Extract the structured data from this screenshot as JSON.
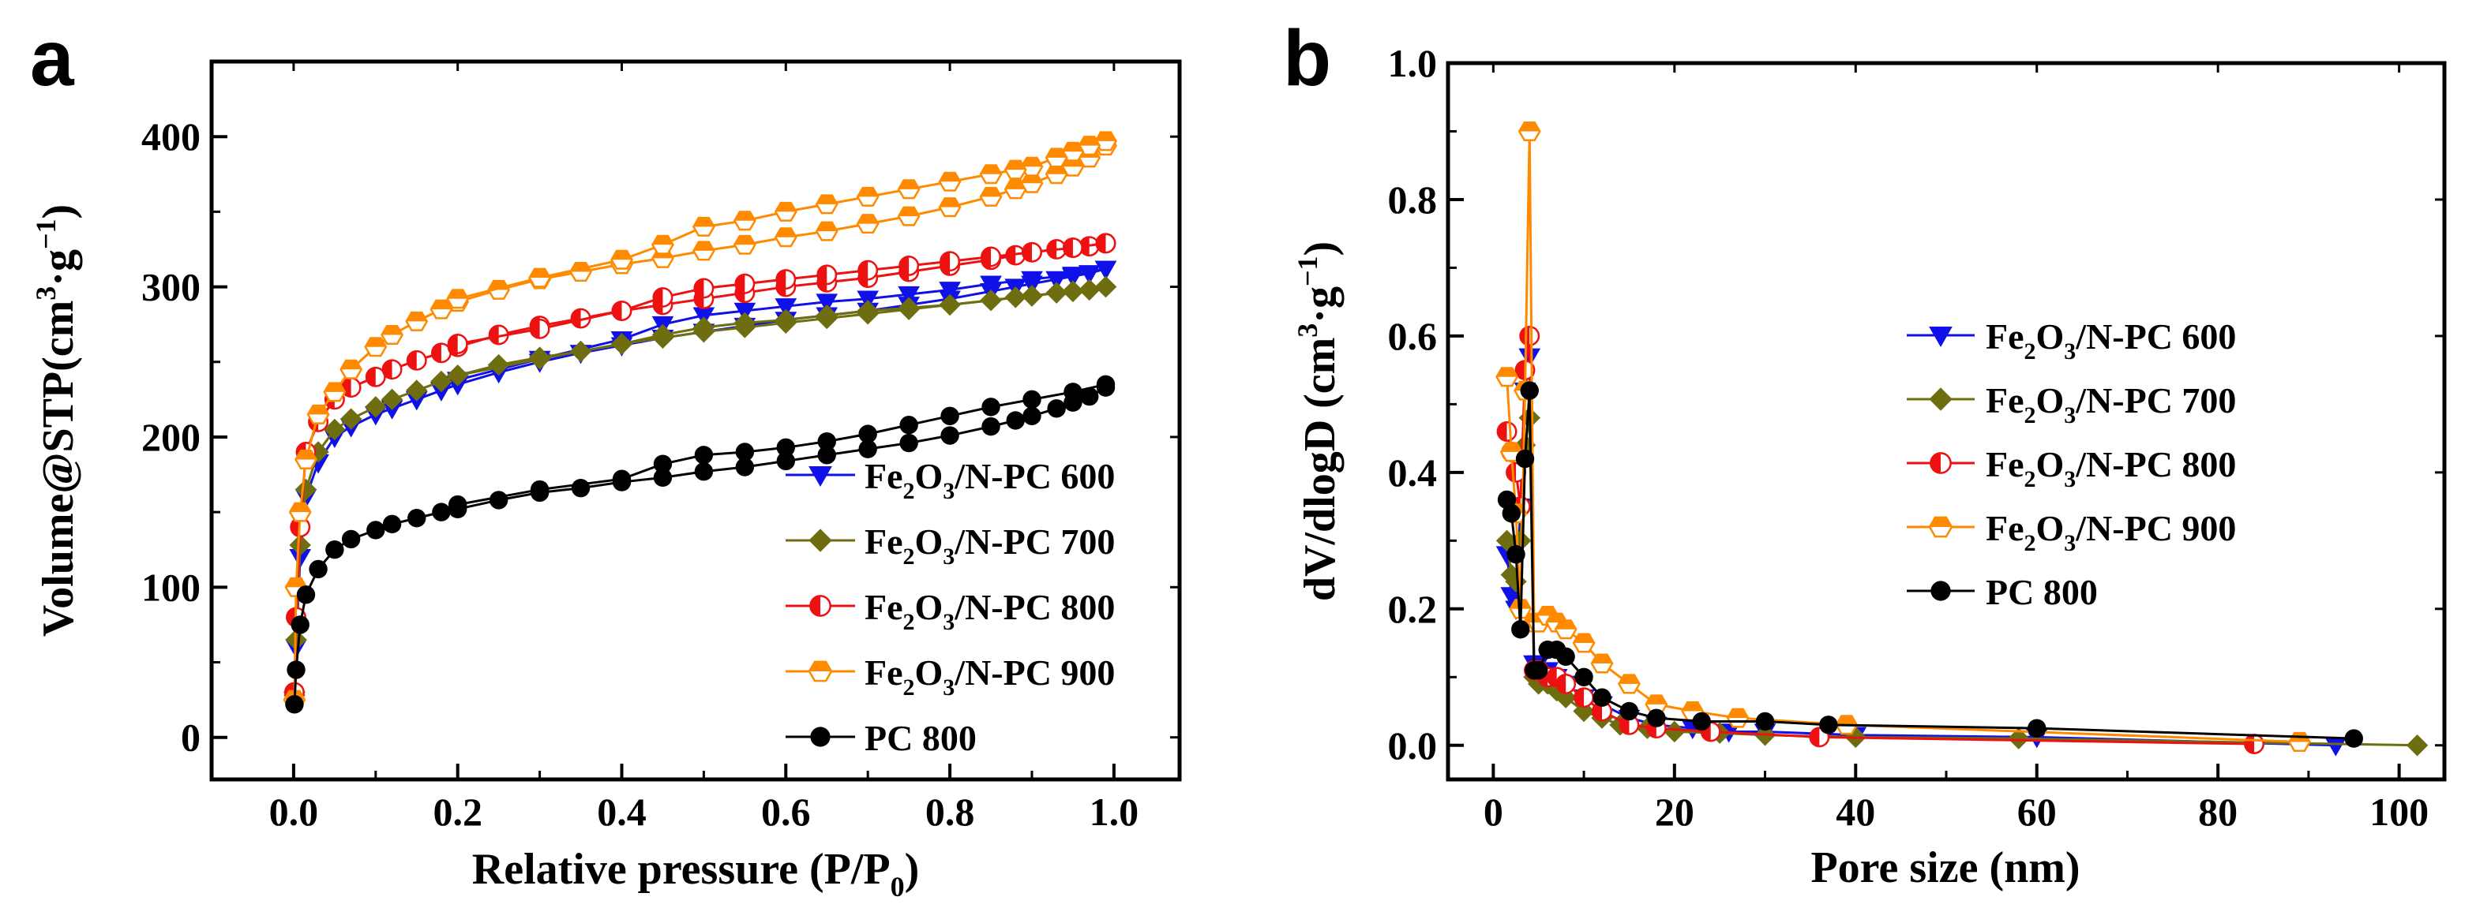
{
  "chart_data": [
    {
      "type": "scatter",
      "panel_label": "a",
      "title": "",
      "xlabel_main": "Relative pressure (P/P",
      "xlabel_sub": "0",
      "xlabel_tail": ")",
      "ylabel_main": "Volume@STP(cm",
      "ylabel_sup1": "3",
      "ylabel_dot": "·g",
      "ylabel_sup2": "−1",
      "ylabel_tail": ")",
      "xlim": [
        -0.1,
        1.08
      ],
      "ylim": [
        -28,
        450
      ],
      "xticks": [
        0.0,
        0.2,
        0.4,
        0.6,
        0.8,
        1.0
      ],
      "xtick_labels": [
        "0.0",
        "0.2",
        "0.4",
        "0.6",
        "0.8",
        "1.0"
      ],
      "yticks": [
        0,
        100,
        200,
        300,
        400
      ],
      "ytick_labels": [
        "0",
        "100",
        "200",
        "300",
        "400"
      ],
      "legend_position": "bottom-right",
      "series": [
        {
          "name": "Fe2O3/N-PC 600",
          "label_parts": [
            "Fe",
            "2",
            "O",
            "3",
            "/N-PC 600"
          ],
          "color": "#1010e8",
          "marker": "triangle-down",
          "adsorption": {
            "x": [
              0.001,
              0.003,
              0.008,
              0.015,
              0.03,
              0.05,
              0.07,
              0.1,
              0.12,
              0.15,
              0.18,
              0.2,
              0.25,
              0.3,
              0.35,
              0.4,
              0.45,
              0.5,
              0.55,
              0.6,
              0.65,
              0.7,
              0.75,
              0.8,
              0.85,
              0.88,
              0.9,
              0.93,
              0.95,
              0.97,
              0.99
            ],
            "y": [
              25,
              60,
              120,
              160,
              183,
              200,
              207,
              215,
              219,
              225,
              231,
              235,
              243,
              250,
              256,
              261,
              266,
              270,
              274,
              278,
              281,
              284,
              288,
              292,
              297,
              300,
              302,
              305,
              307,
              309,
              312
            ]
          },
          "desorption": {
            "x": [
              0.99,
              0.95,
              0.9,
              0.85,
              0.8,
              0.75,
              0.7,
              0.65,
              0.6,
              0.55,
              0.5,
              0.45,
              0.4,
              0.3,
              0.2
            ],
            "y": [
              312,
              308,
              305,
              302,
              298,
              295,
              292,
              290,
              287,
              284,
              281,
              275,
              265,
              252,
              238
            ]
          }
        },
        {
          "name": "Fe2O3/N-PC 700",
          "label_parts": [
            "Fe",
            "2",
            "O",
            "3",
            "/N-PC 700"
          ],
          "color": "#6e6e10",
          "marker": "diamond",
          "adsorption": {
            "x": [
              0.001,
              0.003,
              0.008,
              0.015,
              0.03,
              0.05,
              0.07,
              0.1,
              0.12,
              0.15,
              0.18,
              0.2,
              0.25,
              0.3,
              0.35,
              0.4,
              0.45,
              0.5,
              0.55,
              0.6,
              0.65,
              0.7,
              0.75,
              0.8,
              0.85,
              0.88,
              0.9,
              0.93,
              0.95,
              0.97,
              0.99
            ],
            "y": [
              28,
              65,
              128,
              165,
              190,
              205,
              212,
              220,
              225,
              231,
              237,
              241,
              248,
              253,
              257,
              262,
              266,
              270,
              273,
              276,
              279,
              282,
              285,
              288,
              291,
              293,
              294,
              296,
              297,
              298,
              300
            ]
          },
          "desorption": {
            "x": [
              0.99,
              0.95,
              0.9,
              0.85,
              0.8,
              0.75,
              0.7,
              0.65,
              0.6,
              0.55,
              0.5,
              0.45,
              0.4,
              0.3,
              0.2
            ],
            "y": [
              300,
              297,
              294,
              291,
              288,
              286,
              284,
              281,
              278,
              276,
              273,
              268,
              262,
              252,
              241
            ]
          }
        },
        {
          "name": "Fe2O3/N-PC 800",
          "label_parts": [
            "Fe",
            "2",
            "O",
            "3",
            "/N-PC 800"
          ],
          "color": "#ee1111",
          "marker": "circle-half",
          "adsorption": {
            "x": [
              0.001,
              0.003,
              0.008,
              0.015,
              0.03,
              0.05,
              0.07,
              0.1,
              0.12,
              0.15,
              0.18,
              0.2,
              0.25,
              0.3,
              0.35,
              0.4,
              0.45,
              0.5,
              0.55,
              0.6,
              0.65,
              0.7,
              0.75,
              0.8,
              0.85,
              0.88,
              0.9,
              0.93,
              0.95,
              0.97,
              0.99
            ],
            "y": [
              30,
              80,
              140,
              190,
              210,
              225,
              233,
              240,
              245,
              251,
              256,
              260,
              268,
              274,
              279,
              284,
              288,
              292,
              296,
              300,
              303,
              306,
              310,
              314,
              318,
              321,
              323,
              325,
              326,
              327,
              329
            ]
          },
          "desorption": {
            "x": [
              0.99,
              0.95,
              0.9,
              0.85,
              0.8,
              0.75,
              0.7,
              0.65,
              0.6,
              0.55,
              0.5,
              0.45,
              0.4,
              0.3,
              0.2
            ],
            "y": [
              329,
              326,
              323,
              320,
              317,
              314,
              311,
              308,
              305,
              302,
              299,
              293,
              284,
              272,
              262
            ]
          }
        },
        {
          "name": "Fe2O3/N-PC 900",
          "label_parts": [
            "Fe",
            "2",
            "O",
            "3",
            "/N-PC 900"
          ],
          "color": "#ff8a00",
          "marker": "hexagon-half",
          "adsorption": {
            "x": [
              0.001,
              0.003,
              0.008,
              0.015,
              0.03,
              0.05,
              0.07,
              0.1,
              0.12,
              0.15,
              0.18,
              0.2,
              0.25,
              0.3,
              0.35,
              0.4,
              0.45,
              0.5,
              0.55,
              0.6,
              0.65,
              0.7,
              0.75,
              0.8,
              0.85,
              0.88,
              0.9,
              0.93,
              0.95,
              0.97,
              0.99
            ],
            "y": [
              25,
              100,
              150,
              185,
              215,
              230,
              245,
              260,
              268,
              277,
              285,
              290,
              298,
              305,
              310,
              315,
              319,
              324,
              328,
              333,
              337,
              342,
              347,
              353,
              360,
              365,
              369,
              375,
              380,
              386,
              394
            ]
          },
          "desorption": {
            "x": [
              0.99,
              0.97,
              0.95,
              0.93,
              0.9,
              0.88,
              0.85,
              0.8,
              0.75,
              0.7,
              0.65,
              0.6,
              0.55,
              0.5,
              0.45,
              0.4,
              0.3,
              0.2
            ],
            "y": [
              397,
              394,
              390,
              386,
              380,
              378,
              375,
              370,
              365,
              360,
              355,
              350,
              344,
              340,
              328,
              318,
              306,
              292
            ]
          }
        },
        {
          "name": "PC 800",
          "label_parts": [
            "PC 800",
            "",
            "",
            "",
            ""
          ],
          "color": "#000000",
          "marker": "circle",
          "adsorption": {
            "x": [
              0.001,
              0.003,
              0.008,
              0.015,
              0.03,
              0.05,
              0.07,
              0.1,
              0.12,
              0.15,
              0.18,
              0.2,
              0.25,
              0.3,
              0.35,
              0.4,
              0.45,
              0.5,
              0.55,
              0.6,
              0.65,
              0.7,
              0.75,
              0.8,
              0.85,
              0.88,
              0.9,
              0.93,
              0.95,
              0.97,
              0.99
            ],
            "y": [
              22,
              45,
              75,
              95,
              112,
              125,
              132,
              138,
              142,
              146,
              150,
              152,
              158,
              163,
              166,
              170,
              173,
              177,
              180,
              184,
              188,
              192,
              196,
              201,
              207,
              211,
              214,
              219,
              223,
              227,
              233
            ]
          },
          "desorption": {
            "x": [
              0.99,
              0.95,
              0.9,
              0.85,
              0.8,
              0.75,
              0.7,
              0.65,
              0.6,
              0.55,
              0.5,
              0.45,
              0.4,
              0.3,
              0.2
            ],
            "y": [
              235,
              230,
              225,
              220,
              214,
              208,
              202,
              197,
              193,
              190,
              188,
              182,
              172,
              165,
              155
            ]
          }
        }
      ]
    },
    {
      "type": "line",
      "panel_label": "b",
      "title": "",
      "xlabel_main": "Pore size (nm)",
      "ylabel_main": "dV/dlogD (cm",
      "ylabel_sup1": "3",
      "ylabel_dot": "·g",
      "ylabel_sup2": "−1",
      "ylabel_tail": ")",
      "xlim": [
        -5,
        105
      ],
      "ylim": [
        -0.05,
        1.0
      ],
      "xticks": [
        0,
        20,
        40,
        60,
        80,
        100
      ],
      "xtick_labels": [
        "0",
        "20",
        "40",
        "60",
        "80",
        "100"
      ],
      "yticks": [
        0.0,
        0.2,
        0.4,
        0.6,
        0.8,
        1.0
      ],
      "ytick_labels": [
        "0.0",
        "0.2",
        "0.4",
        "0.6",
        "0.8",
        "1.0"
      ],
      "legend_position": "center-right",
      "series": [
        {
          "name": "Fe2O3/N-PC 600",
          "label_parts": [
            "Fe",
            "2",
            "O",
            "3",
            "/N-PC 600"
          ],
          "color": "#1010e8",
          "marker": "triangle-down",
          "x": [
            1.5,
            2.0,
            2.5,
            3.0,
            3.5,
            4.0,
            4.5,
            5.0,
            6.0,
            7.0,
            8.0,
            10.0,
            12.0,
            15.0,
            18.0,
            22.0,
            26.0,
            30.0,
            40.0,
            60.0,
            93.0
          ],
          "y": [
            0.28,
            0.22,
            0.2,
            0.35,
            0.52,
            0.57,
            0.12,
            0.12,
            0.11,
            0.1,
            0.09,
            0.07,
            0.06,
            0.04,
            0.03,
            0.025,
            0.02,
            0.02,
            0.015,
            0.012,
            0.0
          ]
        },
        {
          "name": "Fe2O3/N-PC 700",
          "label_parts": [
            "Fe",
            "2",
            "O",
            "3",
            "/N-PC 700"
          ],
          "color": "#6e6e10",
          "marker": "diamond",
          "x": [
            1.5,
            2.0,
            2.5,
            3.0,
            3.5,
            4.0,
            4.5,
            5.0,
            6.0,
            7.0,
            8.0,
            10.0,
            12.0,
            14.0,
            17.0,
            20.0,
            25.0,
            30.0,
            40.0,
            58.0,
            102.0
          ],
          "y": [
            0.3,
            0.25,
            0.24,
            0.3,
            0.44,
            0.48,
            0.1,
            0.09,
            0.09,
            0.08,
            0.07,
            0.05,
            0.04,
            0.03,
            0.025,
            0.02,
            0.018,
            0.015,
            0.012,
            0.01,
            0.0
          ]
        },
        {
          "name": "Fe2O3/N-PC 800",
          "label_parts": [
            "Fe",
            "2",
            "O",
            "3",
            "/N-PC 800"
          ],
          "color": "#ee1111",
          "marker": "circle-half",
          "x": [
            1.5,
            2.0,
            2.5,
            3.0,
            3.5,
            4.0,
            4.5,
            5.0,
            6.0,
            7.0,
            8.0,
            10.0,
            12.0,
            15.0,
            18.0,
            24.0,
            36.0,
            84.0
          ],
          "y": [
            0.46,
            0.43,
            0.4,
            0.35,
            0.55,
            0.6,
            0.11,
            0.11,
            0.1,
            0.1,
            0.09,
            0.07,
            0.05,
            0.03,
            0.025,
            0.02,
            0.012,
            0.002
          ]
        },
        {
          "name": "Fe2O3/N-PC 900",
          "label_parts": [
            "Fe",
            "2",
            "O",
            "3",
            "/N-PC 900"
          ],
          "color": "#ff8a00",
          "marker": "hexagon-half",
          "x": [
            1.5,
            2.0,
            2.5,
            3.0,
            3.5,
            4.0,
            4.5,
            5.0,
            6.0,
            7.0,
            8.0,
            10.0,
            12.0,
            15.0,
            18.0,
            22.0,
            27.0,
            39.0,
            89.0
          ],
          "y": [
            0.54,
            0.43,
            0.34,
            0.2,
            0.52,
            0.9,
            0.18,
            0.18,
            0.19,
            0.18,
            0.17,
            0.15,
            0.12,
            0.09,
            0.06,
            0.05,
            0.04,
            0.03,
            0.005
          ]
        },
        {
          "name": "PC 800",
          "label_parts": [
            "PC 800",
            "",
            "",
            "",
            ""
          ],
          "color": "#000000",
          "marker": "circle",
          "x": [
            1.5,
            2.0,
            2.5,
            3.0,
            3.5,
            4.0,
            4.5,
            5.0,
            6.0,
            7.0,
            8.0,
            10.0,
            12.0,
            15.0,
            18.0,
            23.0,
            30.0,
            37.0,
            60.0,
            95.0
          ],
          "y": [
            0.36,
            0.34,
            0.28,
            0.17,
            0.42,
            0.52,
            0.11,
            0.11,
            0.14,
            0.14,
            0.13,
            0.1,
            0.07,
            0.05,
            0.04,
            0.035,
            0.035,
            0.03,
            0.025,
            0.01
          ]
        }
      ]
    }
  ]
}
